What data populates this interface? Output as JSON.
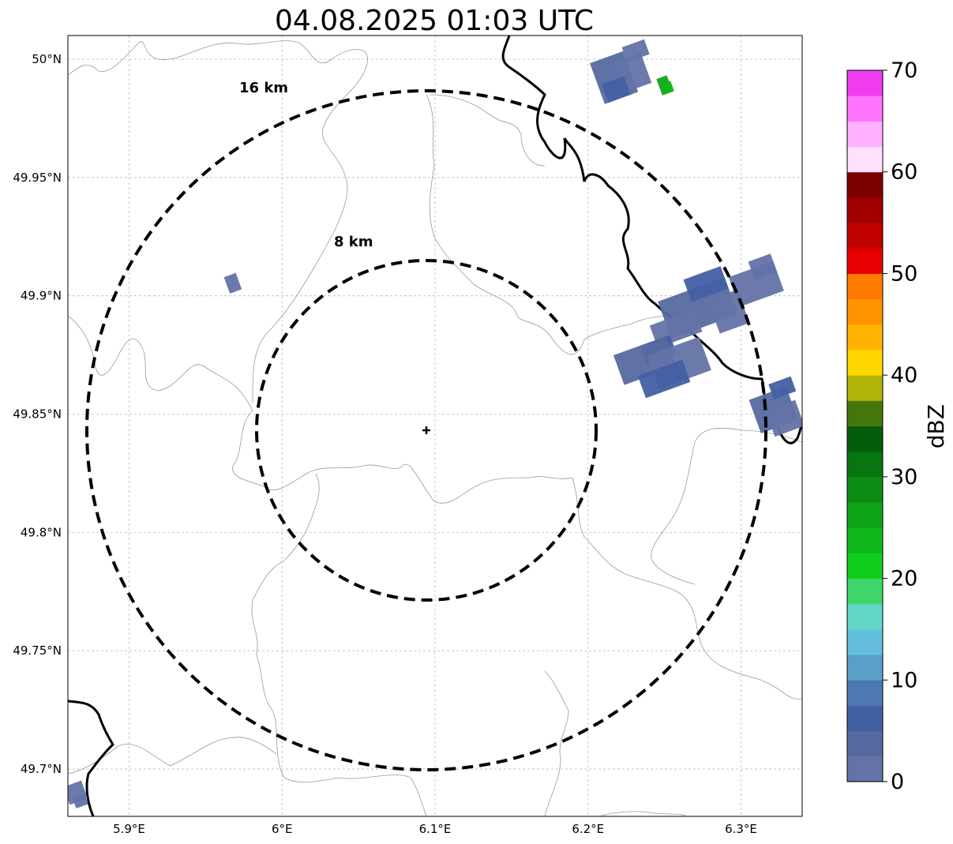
{
  "title": "04.08.2025 01:03 UTC",
  "map": {
    "lon_range": [
      5.86,
      6.34
    ],
    "lat_range": [
      49.68,
      50.01
    ],
    "lon_ticks": [
      5.9,
      6.0,
      6.1,
      6.2,
      6.3
    ],
    "lat_ticks": [
      49.7,
      49.75,
      49.8,
      49.85,
      49.9,
      49.95,
      50.0
    ],
    "lon_tick_labels": [
      "5.9°E",
      "6°E",
      "6.1°E",
      "6.2°E",
      "6.3°E"
    ],
    "lat_tick_labels": [
      "49.7°N",
      "49.75°N",
      "49.8°N",
      "49.85°N",
      "49.9°N",
      "49.95°N",
      "50°N"
    ],
    "gridlines": true,
    "radar_site": {
      "lon": 6.096,
      "lat": 49.843
    },
    "range_rings": [
      {
        "label": "8 km",
        "radius_km": 8
      },
      {
        "label": "16 km",
        "radius_km": 16
      }
    ]
  },
  "colorbar": {
    "label": "dBZ",
    "ticks": [
      "0",
      "10",
      "20",
      "30",
      "40",
      "50",
      "60",
      "70"
    ],
    "vmin": 0,
    "vmax": 70,
    "colors": [
      "#6473a6",
      "#5669a0",
      "#435fa3",
      "#4d79b2",
      "#5a9fc8",
      "#63c0dc",
      "#62d6c8",
      "#3fd66a",
      "#10cd1d",
      "#10b71a",
      "#0ea517",
      "#0c8c15",
      "#097511",
      "#055c0c",
      "#44770a",
      "#b1b306",
      "#ffd700",
      "#ffb300",
      "#ff9400",
      "#ff7a00",
      "#e80000",
      "#c10000",
      "#a20000",
      "#7c0000",
      "#ffe0ff",
      "#ffb0ff",
      "#ff73ff",
      "#f03cf0"
    ]
  },
  "chart_data": {
    "type": "heatmap",
    "title": "04.08.2025 01:03 UTC",
    "colorbar_label": "dBZ",
    "echoes": [
      {
        "lon": 6.225,
        "lat": 49.995,
        "dbz": 3
      },
      {
        "lon": 6.25,
        "lat": 49.99,
        "dbz": 25
      },
      {
        "lon": 6.28,
        "lat": 49.895,
        "dbz": 3
      },
      {
        "lon": 6.31,
        "lat": 49.905,
        "dbz": 2
      },
      {
        "lon": 6.255,
        "lat": 49.875,
        "dbz": 4
      },
      {
        "lon": 6.325,
        "lat": 49.85,
        "dbz": 3
      },
      {
        "lon": 5.968,
        "lat": 49.905,
        "dbz": 2
      },
      {
        "lon": 5.865,
        "lat": 49.69,
        "dbz": 2
      }
    ]
  }
}
